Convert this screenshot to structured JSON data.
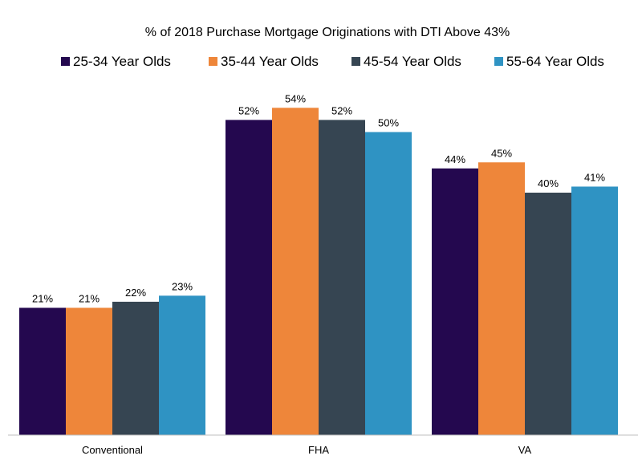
{
  "chart_data": {
    "type": "bar",
    "title": "% of 2018 Purchase Mortgage Originations with DTI Above 43%",
    "categories": [
      "Conventional",
      "FHA",
      "VA"
    ],
    "series": [
      {
        "name": "25-34 Year Olds",
        "color": "#24084f",
        "values": [
          21,
          52,
          44
        ],
        "labels": [
          "21%",
          "52%",
          "44%"
        ]
      },
      {
        "name": "35-44 Year Olds",
        "color": "#ee863a",
        "values": [
          21,
          54,
          45
        ],
        "labels": [
          "21%",
          "54%",
          "45%"
        ]
      },
      {
        "name": "45-54 Year Olds",
        "color": "#364552",
        "values": [
          22,
          52,
          40
        ],
        "labels": [
          "22%",
          "52%",
          "40%"
        ]
      },
      {
        "name": "55-64 Year Olds",
        "color": "#2f93c3",
        "values": [
          23,
          50,
          41
        ],
        "labels": [
          "23%",
          "50%",
          "41%"
        ]
      }
    ],
    "ylim": [
      0,
      60
    ],
    "legend_position": "top",
    "grid": false,
    "y_axis_visible": false
  }
}
